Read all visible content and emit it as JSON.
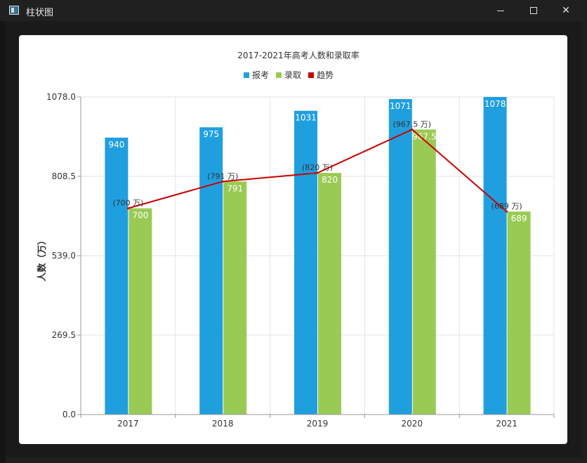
{
  "window": {
    "title": "柱状图",
    "icon": "chart-app-icon"
  },
  "chart_data": {
    "type": "bar",
    "title": "2017-2021年高考人数和录取率",
    "categories": [
      "2017",
      "2018",
      "2019",
      "2020",
      "2021"
    ],
    "series": [
      {
        "name": "报考",
        "kind": "bar",
        "color": "#209fdf",
        "values": [
          940,
          975,
          1031,
          1071,
          1078
        ],
        "labels": [
          "940",
          "975",
          "1031",
          "1071",
          "1078"
        ]
      },
      {
        "name": "录取",
        "kind": "bar",
        "color": "#99ca53",
        "values": [
          700,
          791,
          820,
          967.5,
          689
        ],
        "labels": [
          "700",
          "791",
          "820",
          "967.5",
          "689"
        ]
      },
      {
        "name": "趋势",
        "kind": "line",
        "color": "#cc0000",
        "values": [
          700,
          791,
          820,
          967.5,
          689
        ],
        "labels": [
          "(700 万)",
          "(791 万)",
          "(820 万)",
          "(967.5 万)",
          "(689 万)"
        ]
      }
    ],
    "ylabel": "人数（万）",
    "xlabel": "",
    "ylim": [
      0,
      1078
    ],
    "yticks": [
      "0.0",
      "269.5",
      "539.0",
      "808.5",
      "1078.0"
    ],
    "legend_position": "top-center",
    "grid": true
  }
}
